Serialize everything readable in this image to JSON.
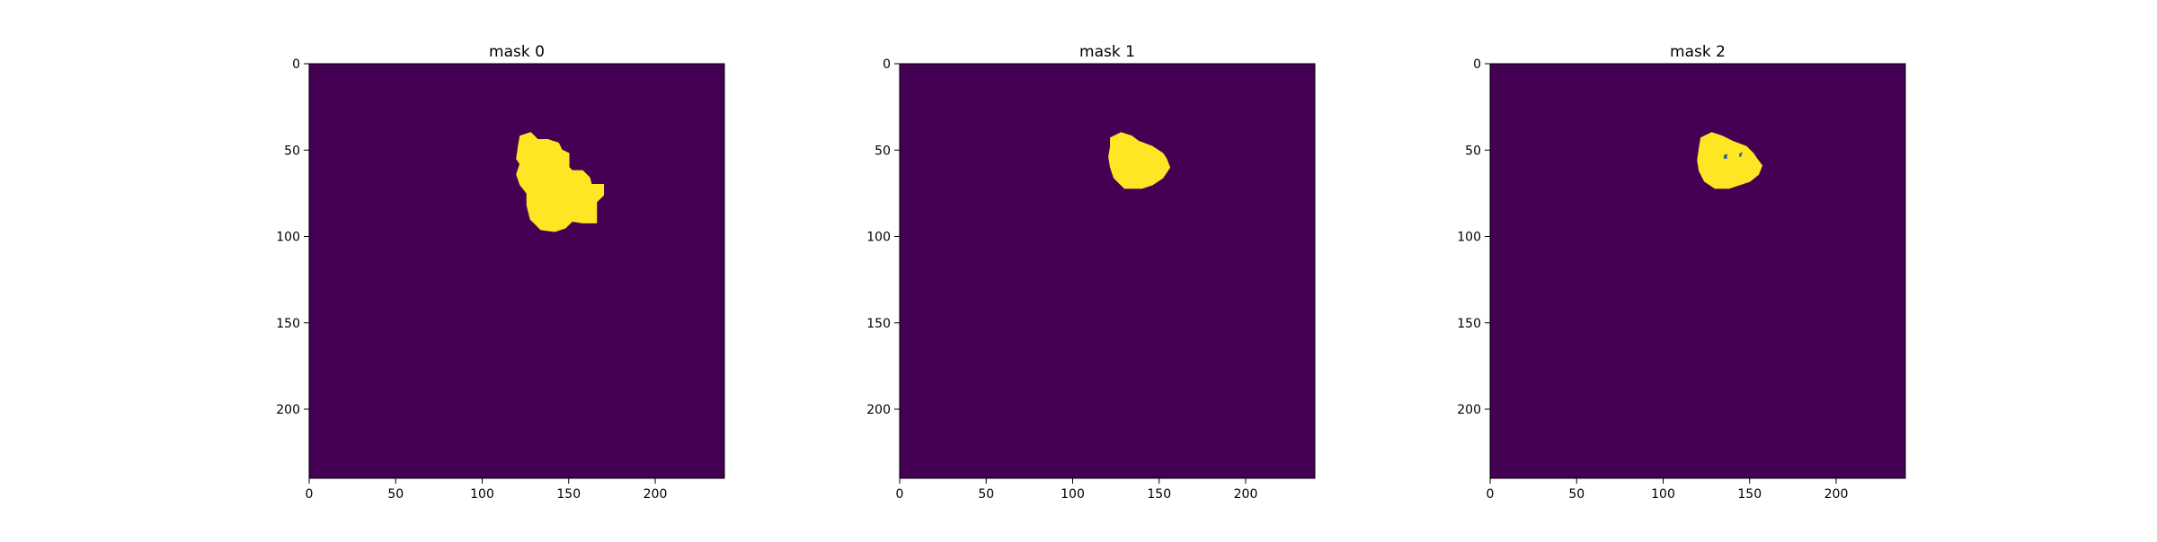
{
  "colors": {
    "background": "#440154",
    "foreground": "#fde725",
    "hole": "#31688e",
    "axis": "#000000"
  },
  "chart_data": [
    {
      "type": "heatmap",
      "title": "mask 0",
      "xlim": [
        0,
        240
      ],
      "ylim": [
        240,
        0
      ],
      "xticks": [
        0,
        50,
        100,
        150,
        200
      ],
      "yticks": [
        0,
        50,
        100,
        150,
        200
      ],
      "grid": false,
      "values": [
        0,
        1
      ],
      "regions": [
        {
          "value": 1,
          "polygon": [
            [
              122,
              42
            ],
            [
              128,
              40
            ],
            [
              132,
              44
            ],
            [
              138,
              44
            ],
            [
              144,
              46
            ],
            [
              146,
              50
            ],
            [
              150,
              52
            ],
            [
              150,
              60
            ],
            [
              152,
              62
            ],
            [
              158,
              62
            ],
            [
              162,
              66
            ],
            [
              163,
              70
            ],
            [
              170,
              70
            ],
            [
              170,
              76
            ],
            [
              166,
              80
            ],
            [
              166,
              92
            ],
            [
              158,
              92
            ],
            [
              152,
              91
            ],
            [
              148,
              95
            ],
            [
              142,
              97
            ],
            [
              134,
              96
            ],
            [
              128,
              90
            ],
            [
              126,
              82
            ],
            [
              126,
              75
            ],
            [
              122,
              70
            ],
            [
              120,
              64
            ],
            [
              122,
              58
            ],
            [
              120,
              55
            ],
            [
              121,
              48
            ]
          ]
        }
      ],
      "holes": []
    },
    {
      "type": "heatmap",
      "title": "mask 1",
      "xlim": [
        0,
        240
      ],
      "ylim": [
        240,
        0
      ],
      "xticks": [
        0,
        50,
        100,
        150,
        200
      ],
      "yticks": [
        0,
        50,
        100,
        150,
        200
      ],
      "grid": false,
      "values": [
        0,
        1
      ],
      "regions": [
        {
          "value": 1,
          "polygon": [
            [
              122,
              43
            ],
            [
              128,
              40
            ],
            [
              134,
              42
            ],
            [
              138,
              45
            ],
            [
              146,
              48
            ],
            [
              152,
              52
            ],
            [
              154,
              55
            ],
            [
              156,
              60
            ],
            [
              152,
              66
            ],
            [
              146,
              70
            ],
            [
              140,
              72
            ],
            [
              130,
              72
            ],
            [
              124,
              66
            ],
            [
              122,
              60
            ],
            [
              121,
              54
            ],
            [
              122,
              48
            ]
          ]
        }
      ],
      "holes": []
    },
    {
      "type": "heatmap",
      "title": "mask 2",
      "xlim": [
        0,
        240
      ],
      "ylim": [
        240,
        0
      ],
      "xticks": [
        0,
        50,
        100,
        150,
        200
      ],
      "yticks": [
        0,
        50,
        100,
        150,
        200
      ],
      "grid": false,
      "values": [
        0,
        1
      ],
      "regions": [
        {
          "value": 1,
          "polygon": [
            [
              122,
              43
            ],
            [
              128,
              40
            ],
            [
              134,
              42
            ],
            [
              140,
              45
            ],
            [
              148,
              48
            ],
            [
              152,
              52
            ],
            [
              154,
              55
            ],
            [
              157,
              59
            ],
            [
              155,
              64
            ],
            [
              150,
              68
            ],
            [
              144,
              70
            ],
            [
              138,
              72
            ],
            [
              130,
              72
            ],
            [
              124,
              68
            ],
            [
              121,
              62
            ],
            [
              120,
              56
            ],
            [
              121,
              49
            ]
          ]
        }
      ],
      "holes": [
        {
          "value": 0,
          "polygon": [
            [
              135,
              53
            ],
            [
              137,
              52
            ],
            [
              137,
              55
            ],
            [
              135,
              55
            ]
          ]
        },
        {
          "value": 0,
          "polygon": [
            [
              144,
              52
            ],
            [
              146,
              51
            ],
            [
              145,
              54
            ],
            [
              144,
              54
            ]
          ]
        }
      ]
    }
  ]
}
